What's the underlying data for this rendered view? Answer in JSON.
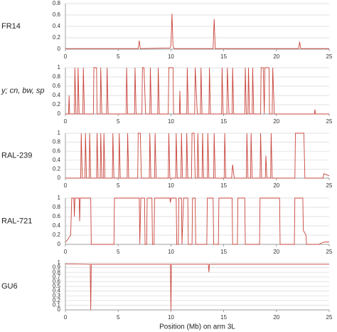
{
  "chart_data": [
    {
      "type": "line",
      "label": "FR14",
      "color": "#c9453c",
      "x": [
        0,
        6.9,
        7.0,
        7.1,
        9.9,
        10.0,
        10.1,
        10.2,
        10.3,
        14.0,
        14.1,
        14.2,
        22.1,
        22.2,
        22.3,
        25
      ],
      "values": [
        0.01,
        0.01,
        0.15,
        0.01,
        0.02,
        0.06,
        0.62,
        0.05,
        0.01,
        0.01,
        0.53,
        0.01,
        0.01,
        0.13,
        0.01,
        0.01
      ],
      "xlim": [
        0,
        25
      ],
      "xticks": [
        0,
        5,
        10,
        15,
        20,
        25
      ],
      "ylim": [
        0,
        0.8
      ],
      "yticks": [
        0,
        0.2,
        0.4,
        0.6,
        0.8
      ],
      "grid": true
    },
    {
      "type": "line",
      "label": "y; cn, bw, sp",
      "color": "#c9453c",
      "x": [
        0,
        0.3,
        0.35,
        0.4,
        0.85,
        0.9,
        1.0,
        1.15,
        1.2,
        1.3,
        1.65,
        1.7,
        1.8,
        2.65,
        2.7,
        2.95,
        3.0,
        3.3,
        3.35,
        3.45,
        3.9,
        3.95,
        4.05,
        5.75,
        5.8,
        5.9,
        6.55,
        6.6,
        6.7,
        7.25,
        7.3,
        7.45,
        7.6,
        8.0,
        8.05,
        8.15,
        8.75,
        8.8,
        8.9,
        9.75,
        9.8,
        10.2,
        10.25,
        10.8,
        10.85,
        10.9,
        11.5,
        11.55,
        11.65,
        12.25,
        12.3,
        12.5,
        12.8,
        12.85,
        12.95,
        13.6,
        13.65,
        13.75,
        14.8,
        14.85,
        14.95,
        15.3,
        15.35,
        15.5,
        15.8,
        15.85,
        15.95,
        17.0,
        17.05,
        17.15,
        17.3,
        17.35,
        17.45,
        17.7,
        17.75,
        17.85,
        18.5,
        18.55,
        18.75,
        18.85,
        18.9,
        19.3,
        19.35,
        19.6,
        19.65,
        19.8,
        23.6,
        23.65,
        23.7,
        25
      ],
      "values": [
        0,
        0,
        0.4,
        0,
        0,
        1,
        0,
        0,
        1,
        0,
        0,
        1,
        0,
        0,
        1,
        1,
        0,
        0,
        1,
        0,
        0,
        1,
        0,
        0,
        1,
        0,
        0,
        1,
        0,
        0,
        1,
        1,
        0,
        0,
        1,
        0,
        0,
        1,
        0,
        0,
        1,
        1,
        0,
        0,
        0.5,
        0,
        0,
        1,
        0,
        0,
        1,
        0,
        0,
        1,
        0,
        0,
        1,
        0,
        0,
        1,
        0,
        0,
        1,
        0,
        0,
        1,
        0,
        0,
        1,
        0,
        0,
        1,
        0,
        0,
        1,
        0,
        0,
        1,
        1,
        0,
        1,
        1,
        0,
        0,
        1,
        0,
        0,
        0.1,
        0,
        0
      ],
      "xlim": [
        0,
        25
      ],
      "xticks": [
        0,
        5,
        10,
        15,
        20,
        25
      ],
      "ylim": [
        0,
        1
      ],
      "yticks": [
        0,
        0.2,
        0.4,
        0.6,
        0.8,
        1
      ],
      "grid": true
    },
    {
      "type": "line",
      "label": "RAL-239",
      "color": "#c9453c",
      "x": [
        0,
        1.45,
        1.5,
        1.6,
        1.85,
        1.9,
        2.0,
        2.25,
        2.3,
        2.4,
        2.95,
        3.0,
        3.1,
        3.3,
        3.35,
        3.45,
        3.6,
        3.65,
        3.75,
        4.45,
        4.5,
        4.6,
        5.05,
        5.1,
        5.2,
        5.85,
        5.9,
        6.0,
        6.85,
        6.9,
        7.1,
        7.2,
        7.95,
        8.0,
        8.1,
        8.45,
        8.5,
        8.6,
        9.75,
        9.8,
        9.9,
        10.45,
        10.5,
        10.6,
        10.95,
        11.0,
        11.1,
        11.45,
        11.5,
        11.6,
        11.95,
        12.0,
        12.2,
        12.3,
        12.5,
        12.55,
        12.65,
        12.95,
        13.0,
        13.1,
        13.45,
        13.5,
        13.6,
        14.05,
        14.1,
        14.2,
        15.05,
        15.1,
        15.2,
        15.75,
        15.85,
        16.0,
        17.15,
        17.2,
        17.3,
        17.55,
        17.6,
        17.7,
        18.45,
        18.5,
        18.6,
        18.95,
        19.0,
        19.1,
        19.45,
        19.5,
        19.6,
        21.75,
        21.8,
        22.6,
        22.7,
        24.4,
        24.5,
        25
      ],
      "values": [
        0,
        0,
        1,
        0,
        0,
        1,
        0,
        0,
        1,
        0,
        0,
        1,
        0,
        0,
        1,
        0,
        0,
        1,
        0,
        0,
        1,
        0,
        0,
        1,
        0,
        0,
        1,
        0,
        0,
        1,
        1,
        0,
        0,
        1,
        0,
        0,
        1,
        0,
        0,
        1,
        0,
        0,
        1,
        0,
        0,
        1,
        0,
        0,
        1,
        0,
        0,
        1,
        1,
        0,
        0,
        1,
        0,
        0,
        1,
        0,
        0,
        1,
        0,
        0,
        1,
        0,
        0,
        1,
        0,
        0,
        0.3,
        0,
        0,
        1,
        0,
        0,
        1,
        0,
        0,
        1,
        0,
        0,
        0.5,
        0,
        0,
        1,
        0,
        0,
        1,
        1,
        0,
        0,
        0.1,
        0.05
      ],
      "xlim": [
        0,
        25
      ],
      "xticks": [
        0,
        5,
        10,
        15,
        20,
        25
      ],
      "ylim": [
        0,
        1
      ],
      "yticks": [
        0,
        0.2,
        0.4,
        0.6,
        0.8,
        1
      ],
      "grid": true
    },
    {
      "type": "line",
      "label": "RAL-721",
      "color": "#c9453c",
      "x": [
        0,
        0.2,
        0.5,
        0.6,
        0.8,
        0.85,
        0.9,
        1.3,
        1.35,
        1.4,
        2.4,
        2.45,
        4.6,
        4.65,
        7.0,
        7.05,
        7.15,
        7.5,
        7.55,
        7.7,
        7.75,
        8.2,
        8.25,
        8.4,
        8.45,
        9.9,
        9.95,
        10.0,
        10.5,
        10.55,
        10.7,
        10.75,
        11.0,
        11.05,
        11.2,
        11.6,
        11.65,
        12.0,
        12.05,
        12.3,
        12.35,
        13.4,
        13.45,
        14.0,
        14.05,
        14.5,
        14.55,
        15.8,
        15.85,
        16.3,
        16.35,
        17.0,
        17.05,
        18.4,
        18.45,
        20.3,
        20.35,
        21.7,
        21.75,
        22.5,
        22.55,
        22.8,
        22.85,
        24.0,
        24.5,
        25
      ],
      "values": [
        0.05,
        0.1,
        0.2,
        1,
        1,
        0.6,
        1,
        1,
        0.5,
        1,
        1,
        0,
        0,
        1,
        1,
        0,
        1,
        1,
        0,
        0,
        1,
        1,
        0,
        0,
        1,
        1,
        0.9,
        1,
        1,
        0,
        0,
        1,
        1,
        0,
        1,
        1,
        0,
        0,
        1,
        1,
        0,
        0,
        1,
        1,
        0,
        0,
        1,
        1,
        0,
        0,
        1,
        1,
        0,
        0,
        1,
        1,
        0,
        0,
        1,
        1,
        0.3,
        0.2,
        0,
        0,
        0.05,
        0.05
      ],
      "xlim": [
        0,
        25
      ],
      "xticks": [
        0,
        5,
        10,
        15,
        20,
        25
      ],
      "ylim": [
        0,
        1
      ],
      "yticks": [
        0,
        0.2,
        0.4,
        0.6,
        0.8,
        1
      ],
      "grid": true
    },
    {
      "type": "line",
      "label": "GU6",
      "color": "#c9453c",
      "x": [
        0,
        2.35,
        2.4,
        2.45,
        9.95,
        10.0,
        10.05,
        13.55,
        13.6,
        13.65,
        25
      ],
      "values": [
        0.98,
        0.97,
        0,
        0.97,
        0.97,
        0,
        0.97,
        0.97,
        0.8,
        0.97,
        0.97
      ],
      "xlim": [
        0,
        25
      ],
      "xticks": [
        0,
        5,
        10,
        15,
        20,
        25
      ],
      "ylim": [
        0,
        1
      ],
      "yticks": [
        0,
        0.1,
        0.2,
        0.3,
        0.4,
        0.5,
        0.6,
        0.7,
        0.8,
        0.9,
        1
      ],
      "grid": true,
      "xlabel": "Position (Mb) on arm 3L"
    }
  ]
}
